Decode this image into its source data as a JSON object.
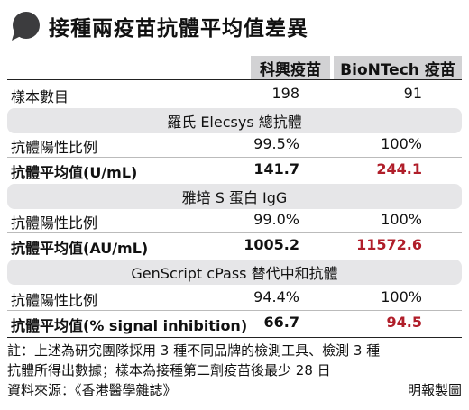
{
  "title": "接種兩疫苗抗體平均值差異",
  "columns": [
    "科興疫苗",
    "BioNTech 疫苗"
  ],
  "sample": {
    "label": "樣本數目",
    "values": [
      "198",
      "91"
    ]
  },
  "sections": [
    {
      "name": "羅氏 Elecsys 總抗體",
      "rows": [
        {
          "label": "抗體陽性比例",
          "values": [
            "99.5%",
            "100%"
          ]
        },
        {
          "label": "抗體平均值(U/mL)",
          "values": [
            "141.7",
            "244.1"
          ]
        }
      ]
    },
    {
      "name": "雅培 S 蛋白 IgG",
      "rows": [
        {
          "label": "抗體陽性比例",
          "values": [
            "99.0%",
            "100%"
          ]
        },
        {
          "label": "抗體平均值(AU/mL)",
          "values": [
            "1005.2",
            "11572.6"
          ]
        }
      ]
    },
    {
      "name": "GenScript cPass 替代中和抗體",
      "rows": [
        {
          "label": "抗體陽性比例",
          "values": [
            "94.4%",
            "100%"
          ]
        },
        {
          "label": "抗體平均值(% signal inhibition)",
          "values": [
            "66.7",
            "94.5"
          ]
        }
      ]
    }
  ],
  "notes": [
    "註：上述為研究團隊採用 3 種不同品牌的檢測工具、檢測 3 種",
    "抗體所得出數據；樣本為接種第二劑疫苗後最少 28 日",
    "資料來源：《香港醫學雜誌》"
  ],
  "credit": "明報製圖",
  "colors": {
    "header_bg": "#d2d2d4",
    "section_bg": "#e6e6e8",
    "highlight": "#b01e2a",
    "bubble": "#3c3c3e"
  }
}
